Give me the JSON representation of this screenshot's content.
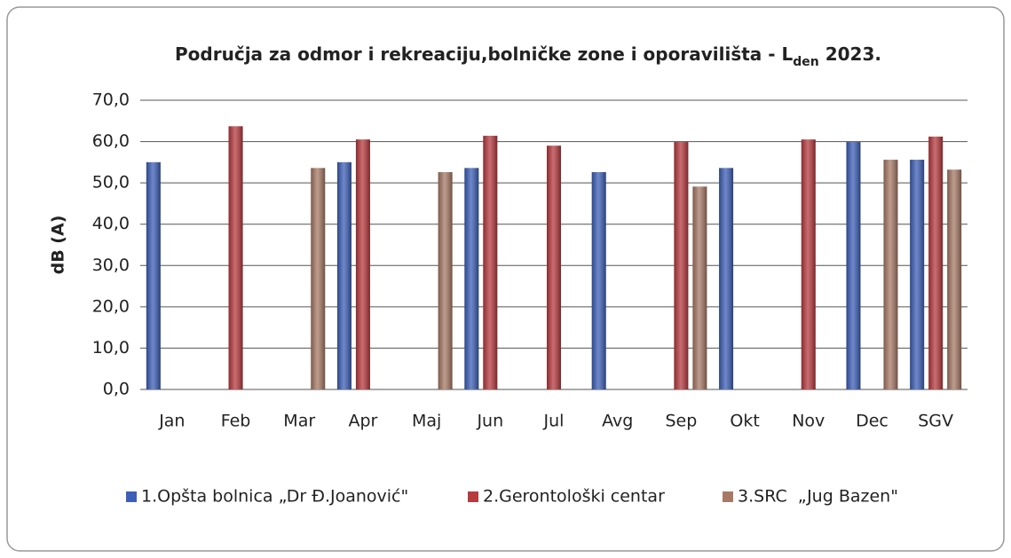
{
  "chart_data": {
    "type": "bar",
    "title": {
      "main": "Područja za odmor i rekreaciju,bolničke zone i oporavilišta - L",
      "sub": "den",
      "end": " 2023."
    },
    "y_label": "dB (A)",
    "categories": [
      "Jan",
      "Feb",
      "Mar",
      "Apr",
      "Maj",
      "Jun",
      "Jul",
      "Avg",
      "Sep",
      "Okt",
      "Nov",
      "Dec",
      "SGV"
    ],
    "series": [
      {
        "name": "1.Opšta bolnica „Dr Đ.Joanović\"",
        "color": "#3d5fb8",
        "values": [
          55.0,
          null,
          null,
          55.0,
          null,
          53.6,
          null,
          52.6,
          null,
          53.6,
          null,
          59.9,
          55.6
        ]
      },
      {
        "name": "2.Gerontološki centar",
        "color": "#b83a3f",
        "values": [
          null,
          63.7,
          null,
          60.5,
          null,
          61.4,
          59.0,
          null,
          59.9,
          null,
          60.5,
          null,
          61.2
        ]
      },
      {
        "name": "3.SRC  „Jug Bazen\"",
        "color": "#a87a66",
        "values": [
          null,
          null,
          53.6,
          null,
          52.6,
          null,
          null,
          null,
          49.1,
          null,
          null,
          55.6,
          53.2
        ]
      }
    ],
    "ylim": [
      0,
      70
    ],
    "yticks": [
      {
        "value": 0,
        "label": "0,0"
      },
      {
        "value": 10,
        "label": "10,0"
      },
      {
        "value": 20,
        "label": "20,0"
      },
      {
        "value": 30,
        "label": "30,0"
      },
      {
        "value": 40,
        "label": "40,0"
      },
      {
        "value": 50,
        "label": "50,0"
      },
      {
        "value": 60,
        "label": "60,0"
      },
      {
        "value": 70,
        "label": "70,0"
      }
    ],
    "grid": true,
    "legend": "bottom"
  }
}
